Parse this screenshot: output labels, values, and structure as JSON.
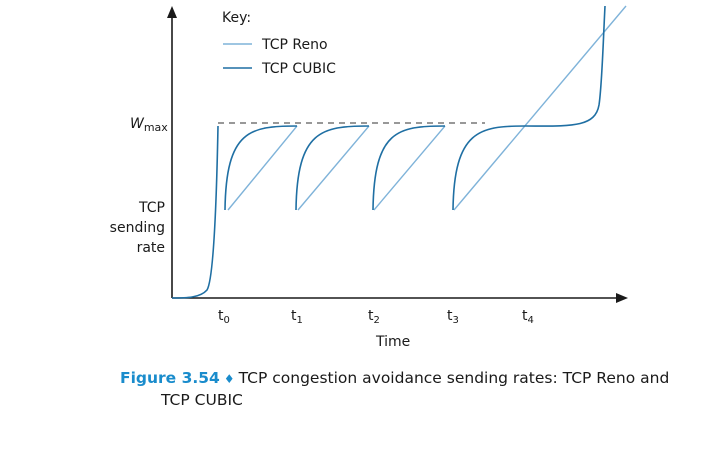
{
  "chart_data": {
    "type": "line",
    "title": "",
    "xlabel": "Time",
    "ylabel": [
      "TCP",
      "sending",
      "rate"
    ],
    "wmax_label": {
      "main": "W",
      "sub": "max"
    },
    "x_ticks": [
      {
        "main": "t",
        "sub": "0"
      },
      {
        "main": "t",
        "sub": "1"
      },
      {
        "main": "t",
        "sub": "2"
      },
      {
        "main": "t",
        "sub": "3"
      },
      {
        "main": "t",
        "sub": "4"
      }
    ],
    "key": {
      "title": "Key:",
      "entries": [
        {
          "name": "TCP Reno",
          "color": "#7fb3d9"
        },
        {
          "name": "TCP CUBIC",
          "color": "#1f6fa3"
        }
      ]
    },
    "x_range": [
      0,
      11.5
    ],
    "y_range": [
      0,
      1.45
    ],
    "wmax_value": 1.0,
    "ticks_x": [
      1,
      2.5,
      4,
      5.5,
      7
    ],
    "reno_segments": [
      {
        "x": [
          1.1,
          2.5
        ],
        "y": [
          0.5,
          1.0
        ]
      },
      {
        "x": [
          2.5,
          4.0
        ],
        "y": [
          0.5,
          1.0
        ]
      },
      {
        "x": [
          4.0,
          5.5
        ],
        "y": [
          0.5,
          1.0
        ]
      },
      {
        "x": [
          5.5,
          11.5
        ],
        "y": [
          0.5,
          1.45
        ]
      }
    ],
    "cubic_curves": [
      {
        "start": 1.0,
        "end": 2.5,
        "kind": "concave"
      },
      {
        "start": 2.5,
        "end": 4.0,
        "kind": "concave"
      },
      {
        "start": 4.0,
        "end": 5.5,
        "kind": "concave"
      },
      {
        "start": 5.5,
        "end": 11.2,
        "kind": "concave-convex"
      }
    ],
    "colors": {
      "axis": "#1a1a1a",
      "reno": "#7fb3d9",
      "cubic": "#1f6fa3",
      "wmax_line": "#777777"
    }
  },
  "caption": {
    "label": "Figure 3.54",
    "separator": "♦",
    "text_line1": "TCP congestion avoidance sending rates: TCP Reno and",
    "text_line2": "TCP CUBIC",
    "label_color": "#1a8ccc"
  }
}
